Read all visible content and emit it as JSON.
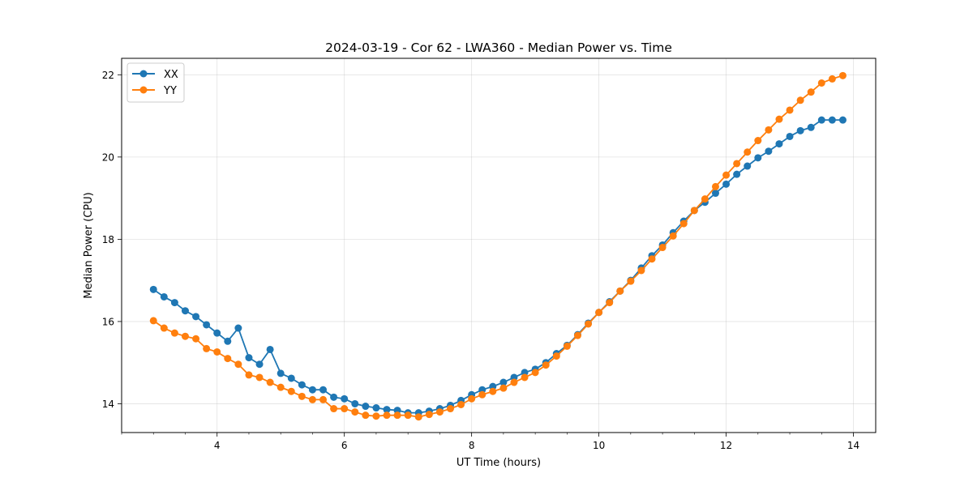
{
  "chart_data": {
    "type": "line",
    "title": "2024-03-19 - Cor 62 - LWA360 - Median Power vs. Time",
    "xlabel": "UT Time (hours)",
    "ylabel": "Median Power (CPU)",
    "xlim": [
      2.5,
      14.35
    ],
    "ylim": [
      13.3,
      22.4
    ],
    "xticks": [
      4,
      6,
      8,
      10,
      12,
      14
    ],
    "yticks": [
      14,
      16,
      18,
      20,
      22
    ],
    "xtick_labels": [
      "4",
      "6",
      "8",
      "10",
      "12",
      "14"
    ],
    "ytick_labels": [
      "14",
      "16",
      "18",
      "20",
      "22"
    ],
    "grid": true,
    "legend_position": "top-left",
    "x": [
      3.0,
      3.1667,
      3.3333,
      3.5,
      3.6667,
      3.8333,
      4.0,
      4.1667,
      4.3333,
      4.5,
      4.6667,
      4.8333,
      5.0,
      5.1667,
      5.3333,
      5.5,
      5.6667,
      5.8333,
      6.0,
      6.1667,
      6.3333,
      6.5,
      6.6667,
      6.8333,
      7.0,
      7.1667,
      7.3333,
      7.5,
      7.6667,
      7.8333,
      8.0,
      8.1667,
      8.3333,
      8.5,
      8.6667,
      8.8333,
      9.0,
      9.1667,
      9.3333,
      9.5,
      9.6667,
      9.8333,
      10.0,
      10.1667,
      10.3333,
      10.5,
      10.6667,
      10.8333,
      11.0,
      11.1667,
      11.3333,
      11.5,
      11.6667,
      11.8333,
      12.0,
      12.1667,
      12.3333,
      12.5,
      12.6667,
      12.8333,
      13.0,
      13.1667,
      13.3333,
      13.5,
      13.6667,
      13.8333
    ],
    "series": [
      {
        "name": "XX",
        "color": "#1f77b4",
        "values": [
          16.78,
          16.6,
          16.46,
          16.26,
          16.12,
          15.92,
          15.72,
          15.52,
          15.84,
          15.12,
          14.96,
          15.32,
          14.74,
          14.62,
          14.46,
          14.34,
          14.34,
          14.16,
          14.12,
          14.0,
          13.94,
          13.9,
          13.86,
          13.84,
          13.78,
          13.78,
          13.82,
          13.88,
          13.96,
          14.08,
          14.22,
          14.34,
          14.42,
          14.52,
          14.64,
          14.76,
          14.84,
          15.0,
          15.22,
          15.42,
          15.68,
          15.96,
          16.22,
          16.48,
          16.74,
          17.0,
          17.3,
          17.6,
          17.86,
          18.16,
          18.44,
          18.7,
          18.9,
          19.12,
          19.34,
          19.58,
          19.78,
          19.98,
          20.14,
          20.32,
          20.5,
          20.64,
          20.72,
          20.9,
          20.9,
          20.9
        ]
      },
      {
        "name": "YY",
        "color": "#ff7f0e",
        "values": [
          16.02,
          15.84,
          15.72,
          15.64,
          15.58,
          15.34,
          15.26,
          15.1,
          14.96,
          14.7,
          14.64,
          14.52,
          14.4,
          14.3,
          14.18,
          14.1,
          14.1,
          13.88,
          13.88,
          13.8,
          13.72,
          13.7,
          13.72,
          13.72,
          13.72,
          13.68,
          13.74,
          13.8,
          13.88,
          13.98,
          14.12,
          14.22,
          14.3,
          14.38,
          14.52,
          14.64,
          14.76,
          14.94,
          15.16,
          15.4,
          15.66,
          15.94,
          16.22,
          16.46,
          16.74,
          16.98,
          17.24,
          17.52,
          17.8,
          18.08,
          18.38,
          18.7,
          18.98,
          19.28,
          19.56,
          19.84,
          20.12,
          20.4,
          20.66,
          20.92,
          21.14,
          21.38,
          21.58,
          21.8,
          21.9,
          21.98
        ]
      }
    ]
  }
}
